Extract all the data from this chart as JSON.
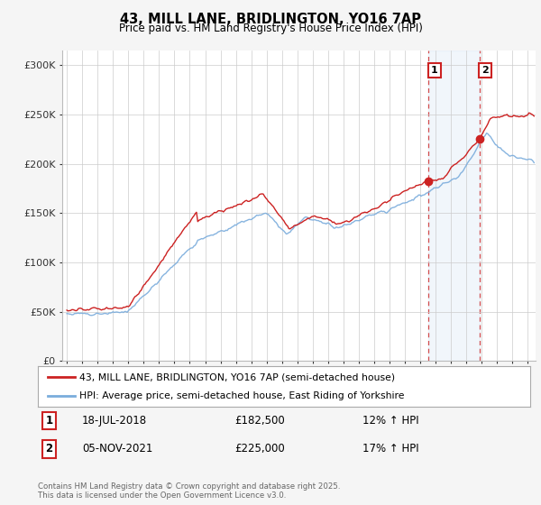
{
  "title": "43, MILL LANE, BRIDLINGTON, YO16 7AP",
  "subtitle": "Price paid vs. HM Land Registry's House Price Index (HPI)",
  "ylabel_ticks": [
    "£0",
    "£50K",
    "£100K",
    "£150K",
    "£200K",
    "£250K",
    "£300K"
  ],
  "ytick_values": [
    0,
    50000,
    100000,
    150000,
    200000,
    250000,
    300000
  ],
  "ylim": [
    0,
    315000
  ],
  "xlim_start": 1994.7,
  "xlim_end": 2025.5,
  "legend_line1": "43, MILL LANE, BRIDLINGTON, YO16 7AP (semi-detached house)",
  "legend_line2": "HPI: Average price, semi-detached house, East Riding of Yorkshire",
  "sale1_date": "18-JUL-2018",
  "sale1_price": "£182,500",
  "sale1_hpi": "12% ↑ HPI",
  "sale1_x": 2018.54,
  "sale1_y": 182500,
  "sale2_date": "05-NOV-2021",
  "sale2_price": "£225,000",
  "sale2_hpi": "17% ↑ HPI",
  "sale2_x": 2021.84,
  "sale2_y": 225000,
  "red_color": "#cc2222",
  "blue_color": "#7aacdc",
  "vline_color": "#cc2222",
  "background_color": "#f5f5f5",
  "plot_bg": "#ffffff",
  "footnote": "Contains HM Land Registry data © Crown copyright and database right 2025.\nThis data is licensed under the Open Government Licence v3.0."
}
